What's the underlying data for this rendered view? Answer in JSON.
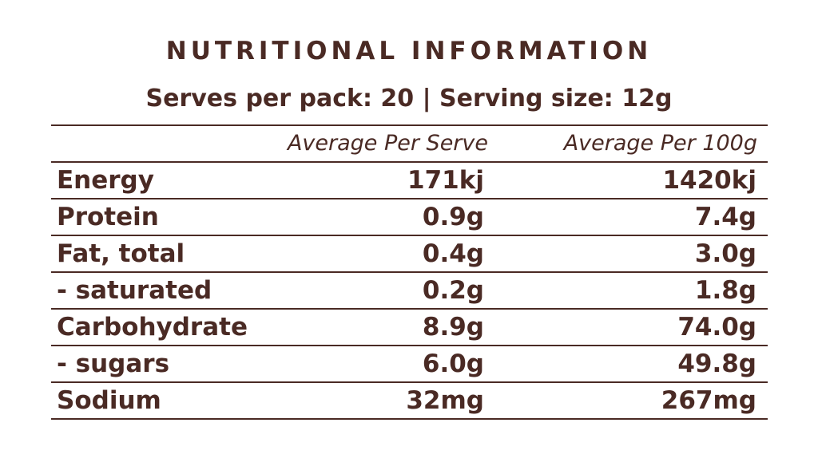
{
  "title": "NUTRITIONAL INFORMATION",
  "subtitle": "Serves per pack: 20  |  Serving size: 12g",
  "table": {
    "columns": [
      "Average Per Serve",
      "Average Per 100g"
    ],
    "rows": [
      {
        "label": "Energy",
        "per_serve": "171kj",
        "per_100g": "1420kj"
      },
      {
        "label": "Protein",
        "per_serve": "0.9g",
        "per_100g": "7.4g"
      },
      {
        "label": "Fat, total",
        "per_serve": "0.4g",
        "per_100g": "3.0g"
      },
      {
        "label": "- saturated",
        "per_serve": "0.2g",
        "per_100g": "1.8g"
      },
      {
        "label": "Carbohydrate",
        "per_serve": "8.9g",
        "per_100g": "74.0g"
      },
      {
        "label": "- sugars",
        "per_serve": "6.0g",
        "per_100g": "49.8g"
      },
      {
        "label": "Sodium",
        "per_serve": "32mg",
        "per_100g": "267mg"
      }
    ]
  },
  "colors": {
    "text": "#4a2a24",
    "rule": "#4a2a24",
    "background": "#ffffff"
  }
}
